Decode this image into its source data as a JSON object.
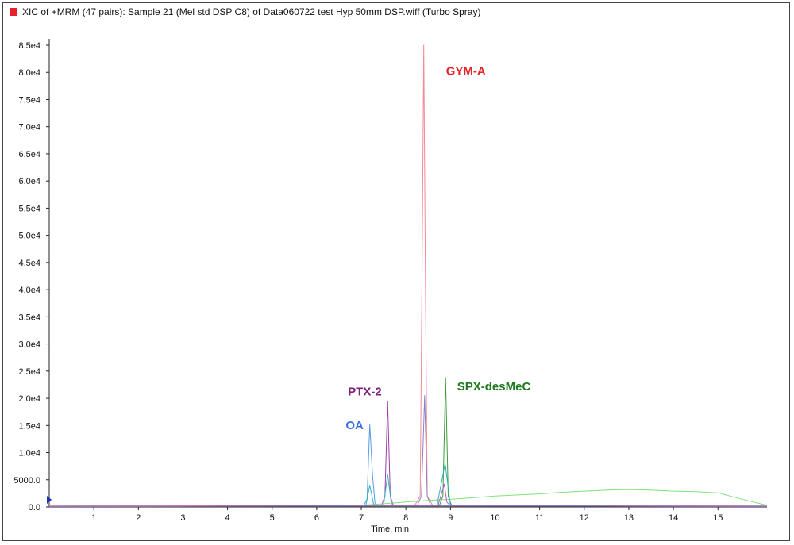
{
  "window": {
    "title": "XIC of +MRM (47 pairs): Sample 21 (Mel std DSP C8) of Data060722 test Hyp 50mm DSP.wiff (Turbo Spray)",
    "title_marker_color": "#e8202a"
  },
  "chart_data": {
    "type": "line",
    "title": "XIC of +MRM (47 pairs): Sample 21 (Mel std DSP C8) of Data060722 test Hyp 50mm DSP.wiff (Turbo Spray)",
    "xlabel": "Time, min",
    "ylabel": "",
    "xlim": [
      0,
      16.1
    ],
    "ylim": [
      0,
      85000
    ],
    "x_ticks": [
      1,
      2,
      3,
      4,
      5,
      6,
      7,
      8,
      9,
      10,
      11,
      12,
      13,
      14,
      15
    ],
    "x_tick_labels": [
      "1",
      "2",
      "3",
      "4",
      "5",
      "6",
      "7",
      "8",
      "9",
      "10",
      "11",
      "12",
      "13",
      "14",
      "15"
    ],
    "y_ticks": [
      0,
      5000,
      10000,
      15000,
      20000,
      25000,
      30000,
      35000,
      40000,
      45000,
      50000,
      55000,
      60000,
      65000,
      70000,
      75000,
      80000,
      85000
    ],
    "y_tick_labels": [
      "0.0",
      "5000.0",
      "1.0e4",
      "1.5e4",
      "2.0e4",
      "2.5e4",
      "3.0e4",
      "3.5e4",
      "4.0e4",
      "4.5e4",
      "5.0e4",
      "5.5e4",
      "6.0e4",
      "6.5e4",
      "7.0e4",
      "7.5e4",
      "8.0e4",
      "8.5e4"
    ],
    "grid": false,
    "series": [
      {
        "color": "#f08a95",
        "x": [
          0,
          8.2,
          8.32,
          8.36,
          8.4,
          8.44,
          8.48,
          8.6,
          16.1
        ],
        "y": [
          200,
          300,
          2000,
          40000,
          85000,
          40000,
          2000,
          300,
          200
        ]
      },
      {
        "color": "#5a9be0",
        "x": [
          0,
          7.05,
          7.13,
          7.19,
          7.25,
          7.31,
          7.4,
          16.1
        ],
        "y": [
          100,
          200,
          1500,
          15200,
          6000,
          500,
          200,
          100
        ]
      },
      {
        "color": "#9b3fa3",
        "x": [
          0,
          7.45,
          7.53,
          7.59,
          7.65,
          7.72,
          16.1
        ],
        "y": [
          100,
          200,
          2000,
          19500,
          2000,
          200,
          100
        ]
      },
      {
        "color": "#8a80c8",
        "x": [
          0,
          8.25,
          8.35,
          8.42,
          8.48,
          8.56,
          16.1
        ],
        "y": [
          100,
          200,
          2000,
          20500,
          2000,
          200,
          100
        ]
      },
      {
        "color": "#3c9a3c",
        "x": [
          0,
          8.75,
          8.83,
          8.89,
          8.95,
          9.03,
          16.1
        ],
        "y": [
          100,
          200,
          2000,
          23800,
          2000,
          200,
          100
        ]
      },
      {
        "color": "#7fe07f",
        "x": [
          0,
          6.5,
          7.0,
          7.5,
          8.0,
          8.5,
          9.0,
          9.5,
          10.0,
          10.5,
          11.0,
          11.5,
          12.0,
          12.5,
          13.0,
          13.5,
          14.0,
          14.5,
          15.0,
          15.5,
          16.1
        ],
        "y": [
          100,
          150,
          300,
          600,
          900,
          1200,
          1400,
          1700,
          2000,
          2200,
          2400,
          2700,
          2900,
          3100,
          3200,
          3100,
          2900,
          2800,
          2600,
          1500,
          300
        ]
      },
      {
        "color": "#30b0c0",
        "x": [
          0,
          7.1,
          7.19,
          7.28,
          7.5,
          7.59,
          7.68,
          8.7,
          8.88,
          9.0,
          16.1
        ],
        "y": [
          100,
          200,
          4000,
          300,
          300,
          6000,
          300,
          300,
          8000,
          300,
          100
        ]
      },
      {
        "color": "#b060c8",
        "x": [
          0,
          8.72,
          8.86,
          8.92,
          9.0,
          16.1
        ],
        "y": [
          100,
          200,
          4200,
          900,
          200,
          100
        ]
      }
    ],
    "annotations": [
      {
        "text": "GYM-A",
        "x": 8.9,
        "y": 79500,
        "color": "#e8202a"
      },
      {
        "text": "PTX-2",
        "x": 6.7,
        "y": 20500,
        "color": "#7a1f7a"
      },
      {
        "text": "OA",
        "x": 6.65,
        "y": 14300,
        "color": "#3f6fe0"
      },
      {
        "text": "SPX-desMeC",
        "x": 9.15,
        "y": 21500,
        "color": "#1f7a1f"
      }
    ]
  }
}
